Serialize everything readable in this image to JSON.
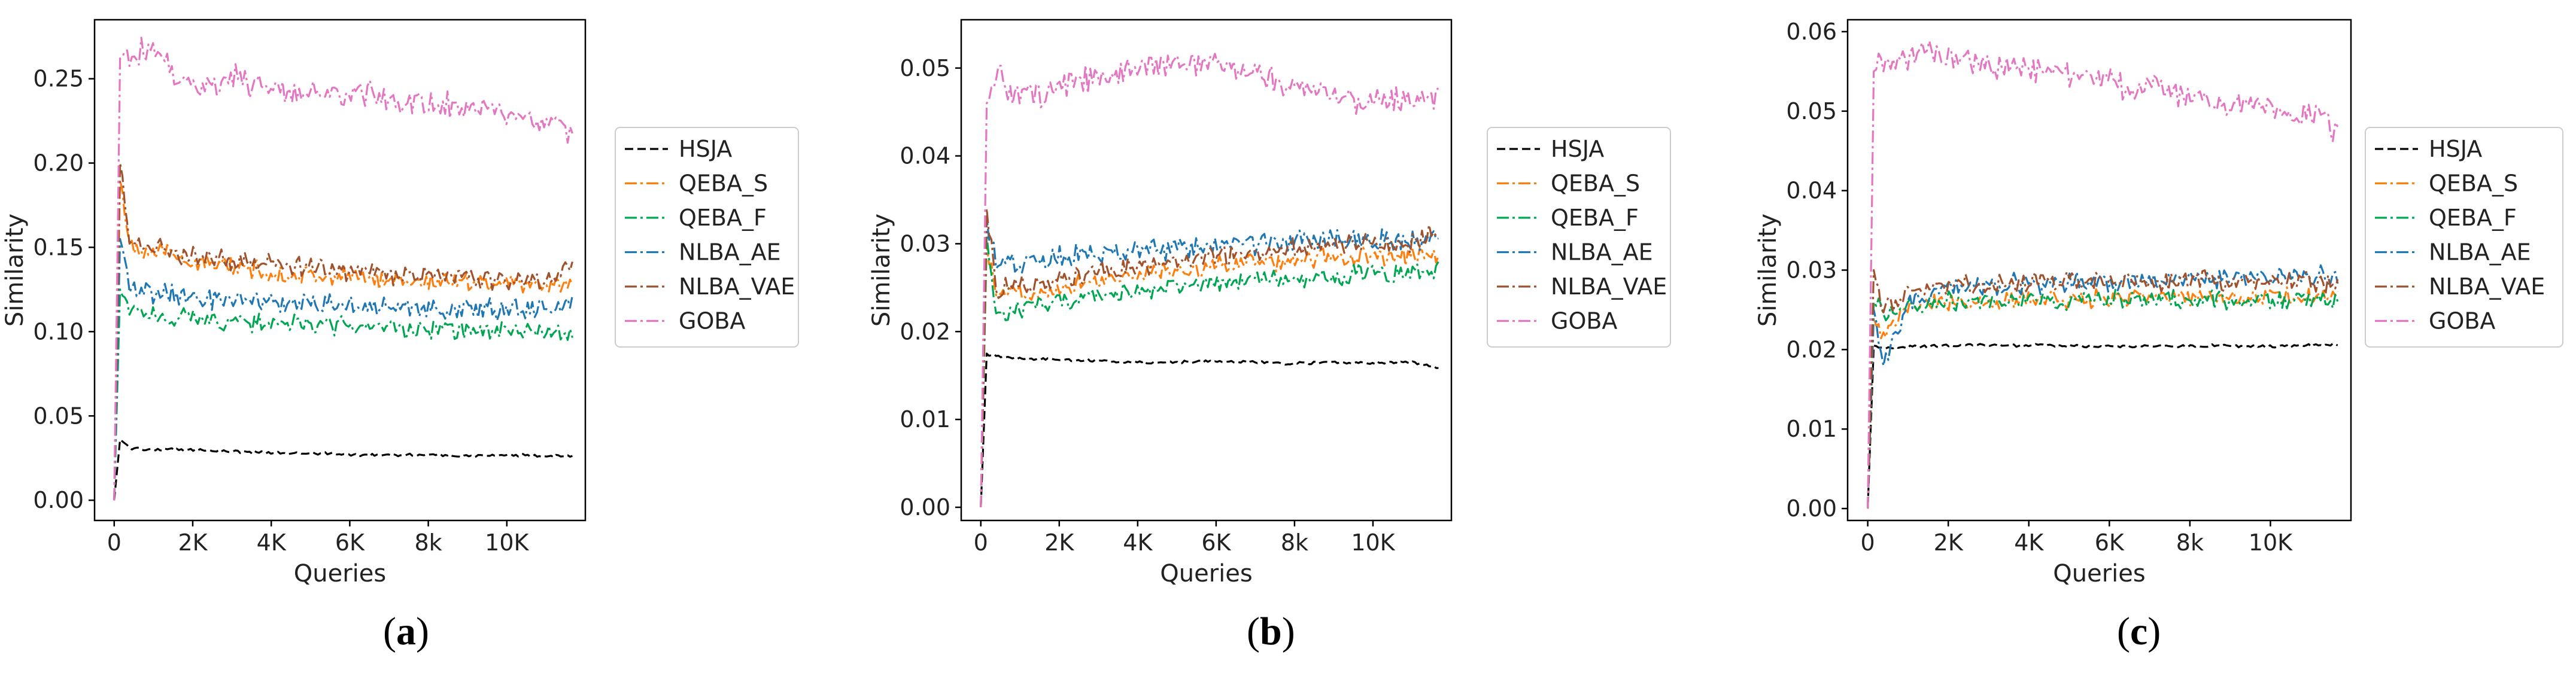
{
  "colors": {
    "HSJA": "#000000",
    "QEBA_S": "#ff7f0e",
    "QEBA_F": "#00a651",
    "NLBA_AE": "#1f77b4",
    "NLBA_VAE": "#a0522d",
    "GOBA": "#e377c2"
  },
  "legend_labels": [
    "HSJA",
    "QEBA_S",
    "QEBA_F",
    "NLBA_AE",
    "NLBA_VAE",
    "GOBA"
  ],
  "captions": [
    {
      "open": "(",
      "letter": "a",
      "close": ")"
    },
    {
      "open": "(",
      "letter": "b",
      "close": ")"
    },
    {
      "open": "(",
      "letter": "c",
      "close": ")"
    }
  ],
  "chart_data": [
    {
      "type": "line",
      "panel": "a",
      "xlabel": "Queries",
      "ylabel": "Similarity",
      "xlim": [
        -500,
        12000
      ],
      "ylim": [
        -0.012,
        0.285
      ],
      "xticks": [
        0,
        2000,
        4000,
        6000,
        8000,
        10000
      ],
      "xtick_labels": [
        "0",
        "2K",
        "4K",
        "6K",
        "8k",
        "10K"
      ],
      "yticks": [
        0.0,
        0.05,
        0.1,
        0.15,
        0.2,
        0.25
      ],
      "ytick_labels": [
        "0.00",
        "0.05",
        "0.10",
        "0.15",
        "0.20",
        "0.25"
      ],
      "legend_position": "right, outside",
      "series": [
        {
          "name": "HSJA",
          "x": [
            0,
            150,
            400,
            1000,
            2000,
            3000,
            4000,
            5000,
            6000,
            7000,
            8000,
            9000,
            10000,
            11000,
            11700
          ],
          "values": [
            0.0,
            0.036,
            0.031,
            0.03,
            0.03,
            0.029,
            0.028,
            0.028,
            0.027,
            0.027,
            0.027,
            0.026,
            0.027,
            0.026,
            0.026
          ]
        },
        {
          "name": "QEBA_S",
          "x": [
            0,
            150,
            400,
            1000,
            2000,
            3000,
            4000,
            5000,
            6000,
            7000,
            8000,
            9000,
            10000,
            11000,
            11700
          ],
          "values": [
            0.0,
            0.19,
            0.152,
            0.148,
            0.142,
            0.138,
            0.135,
            0.133,
            0.132,
            0.131,
            0.13,
            0.13,
            0.129,
            0.128,
            0.128
          ]
        },
        {
          "name": "QEBA_F",
          "x": [
            0,
            150,
            400,
            1000,
            2000,
            3000,
            4000,
            5000,
            6000,
            7000,
            8000,
            9000,
            10000,
            11000,
            11700
          ],
          "values": [
            0.0,
            0.125,
            0.112,
            0.11,
            0.108,
            0.106,
            0.105,
            0.104,
            0.103,
            0.102,
            0.101,
            0.1,
            0.1,
            0.099,
            0.099
          ]
        },
        {
          "name": "NLBA_AE",
          "x": [
            0,
            150,
            400,
            1000,
            2000,
            3000,
            4000,
            5000,
            6000,
            7000,
            8000,
            9000,
            10000,
            11000,
            11700
          ],
          "values": [
            0.0,
            0.155,
            0.126,
            0.123,
            0.12,
            0.119,
            0.118,
            0.117,
            0.116,
            0.115,
            0.114,
            0.114,
            0.113,
            0.113,
            0.117
          ]
        },
        {
          "name": "NLBA_VAE",
          "x": [
            0,
            150,
            400,
            1000,
            2000,
            3000,
            4000,
            5000,
            6000,
            7000,
            8000,
            9000,
            10000,
            11000,
            11700
          ],
          "values": [
            0.0,
            0.2,
            0.155,
            0.15,
            0.145,
            0.142,
            0.14,
            0.138,
            0.136,
            0.134,
            0.133,
            0.132,
            0.131,
            0.13,
            0.14
          ]
        },
        {
          "name": "GOBA",
          "x": [
            0,
            150,
            400,
            1000,
            1500,
            2000,
            3000,
            4000,
            5000,
            6000,
            7000,
            8000,
            9000,
            10000,
            11000,
            11700
          ],
          "values": [
            0.0,
            0.262,
            0.265,
            0.27,
            0.255,
            0.245,
            0.25,
            0.245,
            0.24,
            0.242,
            0.238,
            0.235,
            0.232,
            0.228,
            0.225,
            0.218
          ]
        }
      ]
    },
    {
      "type": "line",
      "panel": "b",
      "xlabel": "Queries",
      "ylabel": "Similarity",
      "xlim": [
        -500,
        12000
      ],
      "ylim": [
        -0.0015,
        0.0555
      ],
      "xticks": [
        0,
        2000,
        4000,
        6000,
        8000,
        10000
      ],
      "xtick_labels": [
        "0",
        "2K",
        "4K",
        "6K",
        "8k",
        "10K"
      ],
      "yticks": [
        0.0,
        0.01,
        0.02,
        0.03,
        0.04,
        0.05
      ],
      "ytick_labels": [
        "0.00",
        "0.01",
        "0.02",
        "0.03",
        "0.04",
        "0.05"
      ],
      "legend_position": "right, outside",
      "series": [
        {
          "name": "HSJA",
          "x": [
            0,
            150,
            400,
            1000,
            2000,
            3000,
            4000,
            5000,
            6000,
            7000,
            8000,
            9000,
            10000,
            11000,
            11700
          ],
          "values": [
            0.0,
            0.0175,
            0.0172,
            0.017,
            0.0168,
            0.0167,
            0.0165,
            0.0165,
            0.0166,
            0.0165,
            0.0164,
            0.0165,
            0.0164,
            0.0165,
            0.0158
          ]
        },
        {
          "name": "QEBA_S",
          "x": [
            0,
            150,
            400,
            1000,
            2000,
            3000,
            4000,
            5000,
            6000,
            7000,
            8000,
            9000,
            10000,
            11000,
            11700
          ],
          "values": [
            0.0,
            0.03,
            0.024,
            0.0245,
            0.025,
            0.026,
            0.0265,
            0.027,
            0.0275,
            0.028,
            0.028,
            0.0285,
            0.0285,
            0.0285,
            0.029
          ]
        },
        {
          "name": "QEBA_F",
          "x": [
            0,
            150,
            400,
            1000,
            2000,
            3000,
            4000,
            5000,
            6000,
            7000,
            8000,
            9000,
            10000,
            11000,
            11700
          ],
          "values": [
            0.0,
            0.031,
            0.022,
            0.0225,
            0.0235,
            0.024,
            0.0245,
            0.025,
            0.0255,
            0.026,
            0.026,
            0.0262,
            0.0265,
            0.0265,
            0.027
          ]
        },
        {
          "name": "NLBA_AE",
          "x": [
            0,
            150,
            400,
            1000,
            2000,
            3000,
            4000,
            5000,
            6000,
            7000,
            8000,
            9000,
            10000,
            11000,
            11700
          ],
          "values": [
            0.0,
            0.033,
            0.0275,
            0.028,
            0.0285,
            0.029,
            0.0293,
            0.0295,
            0.0297,
            0.03,
            0.0302,
            0.0305,
            0.0305,
            0.0303,
            0.031
          ]
        },
        {
          "name": "NLBA_VAE",
          "x": [
            0,
            150,
            400,
            1000,
            2000,
            3000,
            4000,
            5000,
            6000,
            7000,
            8000,
            9000,
            10000,
            11000,
            11700
          ],
          "values": [
            0.0,
            0.034,
            0.025,
            0.025,
            0.026,
            0.027,
            0.0275,
            0.028,
            0.0285,
            0.029,
            0.0295,
            0.0298,
            0.03,
            0.03,
            0.0315
          ]
        },
        {
          "name": "GOBA",
          "x": [
            0,
            150,
            400,
            1000,
            2000,
            3000,
            4000,
            5000,
            6000,
            7000,
            8000,
            9000,
            10000,
            11000,
            11700
          ],
          "values": [
            0.0,
            0.046,
            0.05,
            0.046,
            0.048,
            0.049,
            0.05,
            0.0505,
            0.051,
            0.0495,
            0.048,
            0.047,
            0.046,
            0.0465,
            0.047
          ]
        }
      ]
    },
    {
      "type": "line",
      "panel": "c",
      "xlabel": "Queries",
      "ylabel": "Similarity",
      "xlim": [
        -500,
        12000
      ],
      "ylim": [
        -0.0015,
        0.0615
      ],
      "xticks": [
        0,
        2000,
        4000,
        6000,
        8000,
        10000
      ],
      "xtick_labels": [
        "0",
        "2K",
        "4K",
        "6K",
        "8k",
        "10K"
      ],
      "yticks": [
        0.0,
        0.01,
        0.02,
        0.03,
        0.04,
        0.05,
        0.06
      ],
      "ytick_labels": [
        "0.00",
        "0.01",
        "0.02",
        "0.03",
        "0.04",
        "0.05",
        "0.06"
      ],
      "legend_position": "right, outside",
      "series": [
        {
          "name": "HSJA",
          "x": [
            0,
            150,
            400,
            1000,
            2000,
            3000,
            4000,
            5000,
            6000,
            7000,
            8000,
            9000,
            10000,
            11000,
            11700
          ],
          "values": [
            0.0,
            0.0205,
            0.0202,
            0.0203,
            0.0205,
            0.0206,
            0.0205,
            0.0205,
            0.0204,
            0.0205,
            0.0204,
            0.0205,
            0.0204,
            0.0205,
            0.0207
          ]
        },
        {
          "name": "QEBA_S",
          "x": [
            0,
            150,
            400,
            1000,
            2000,
            3000,
            4000,
            5000,
            6000,
            7000,
            8000,
            9000,
            10000,
            11000,
            11700
          ],
          "values": [
            0.0,
            0.024,
            0.022,
            0.025,
            0.026,
            0.0262,
            0.0263,
            0.0263,
            0.0264,
            0.0265,
            0.0265,
            0.0266,
            0.0266,
            0.0267,
            0.027
          ]
        },
        {
          "name": "QEBA_F",
          "x": [
            0,
            150,
            400,
            1000,
            2000,
            3000,
            4000,
            5000,
            6000,
            7000,
            8000,
            9000,
            10000,
            11000,
            11700
          ],
          "values": [
            0.0,
            0.026,
            0.0245,
            0.0255,
            0.026,
            0.0262,
            0.0262,
            0.0262,
            0.0263,
            0.0263,
            0.0263,
            0.0263,
            0.0263,
            0.0263,
            0.0262
          ]
        },
        {
          "name": "NLBA_AE",
          "x": [
            0,
            150,
            400,
            1000,
            2000,
            3000,
            4000,
            5000,
            6000,
            7000,
            8000,
            9000,
            10000,
            11000,
            11700
          ],
          "values": [
            0.0,
            0.025,
            0.018,
            0.026,
            0.0275,
            0.028,
            0.0283,
            0.0285,
            0.0287,
            0.0288,
            0.029,
            0.029,
            0.029,
            0.0292,
            0.029
          ]
        },
        {
          "name": "NLBA_VAE",
          "x": [
            0,
            150,
            400,
            1000,
            2000,
            3000,
            4000,
            5000,
            6000,
            7000,
            8000,
            9000,
            10000,
            11000,
            11700
          ],
          "values": [
            0.0,
            0.03,
            0.025,
            0.027,
            0.028,
            0.0285,
            0.0285,
            0.0285,
            0.0285,
            0.0285,
            0.0285,
            0.0285,
            0.0285,
            0.0285,
            0.028
          ]
        },
        {
          "name": "GOBA",
          "x": [
            0,
            150,
            400,
            1000,
            1500,
            2000,
            3000,
            4000,
            5000,
            6000,
            7000,
            8000,
            9000,
            10000,
            11000,
            11700
          ],
          "values": [
            0.0,
            0.055,
            0.056,
            0.057,
            0.058,
            0.0565,
            0.0555,
            0.0555,
            0.0545,
            0.0535,
            0.053,
            0.052,
            0.051,
            0.0505,
            0.05,
            0.0475
          ]
        }
      ]
    }
  ]
}
